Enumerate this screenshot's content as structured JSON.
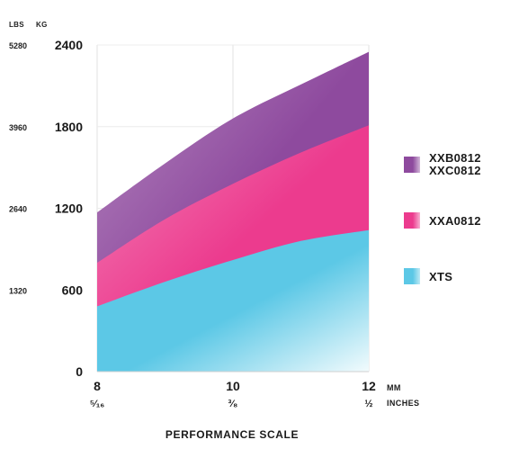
{
  "chart_data": {
    "type": "area",
    "title": "",
    "xlabel": "PERFORMANCE SCALE",
    "x_unit_primary": "MM",
    "x_unit_secondary": "INCHES",
    "y_unit_left": "LBS",
    "y_unit_right": "KG",
    "x": [
      8,
      10,
      12
    ],
    "x_tick_labels": [
      "8",
      "10",
      "12"
    ],
    "x_tick_labels_inches": [
      "⁵⁄₁₆",
      "³⁄₈",
      "½"
    ],
    "xlim": [
      8,
      12
    ],
    "ylim": [
      0,
      2400
    ],
    "y_ticks_kg": [
      0,
      600,
      1200,
      1800,
      2400
    ],
    "y_tick_labels_kg": [
      "0",
      "600",
      "1200",
      "1800",
      "2400"
    ],
    "y_tick_labels_lbs": [
      "",
      "1320",
      "2640",
      "3960",
      "5280"
    ],
    "grid": true,
    "legend_position": "right",
    "series": [
      {
        "name": "XTS",
        "legend_lines": [
          "XTS"
        ],
        "color": "#5cc8e6",
        "x": [
          8,
          9,
          10,
          11,
          12
        ],
        "values": [
          480,
          660,
          820,
          960,
          1040
        ]
      },
      {
        "name": "XXA0812",
        "legend_lines": [
          "XXA0812"
        ],
        "color": "#ec3b8e",
        "x": [
          8,
          9,
          10,
          11,
          12
        ],
        "values": [
          800,
          1120,
          1380,
          1610,
          1810
        ]
      },
      {
        "name": "XXB0812 XXC0812",
        "legend_lines": [
          "XXB0812",
          "XXC0812"
        ],
        "color": "#8e4a9e",
        "x": [
          8,
          9,
          10,
          11,
          12
        ],
        "values": [
          1170,
          1530,
          1860,
          2110,
          2350
        ]
      }
    ]
  }
}
